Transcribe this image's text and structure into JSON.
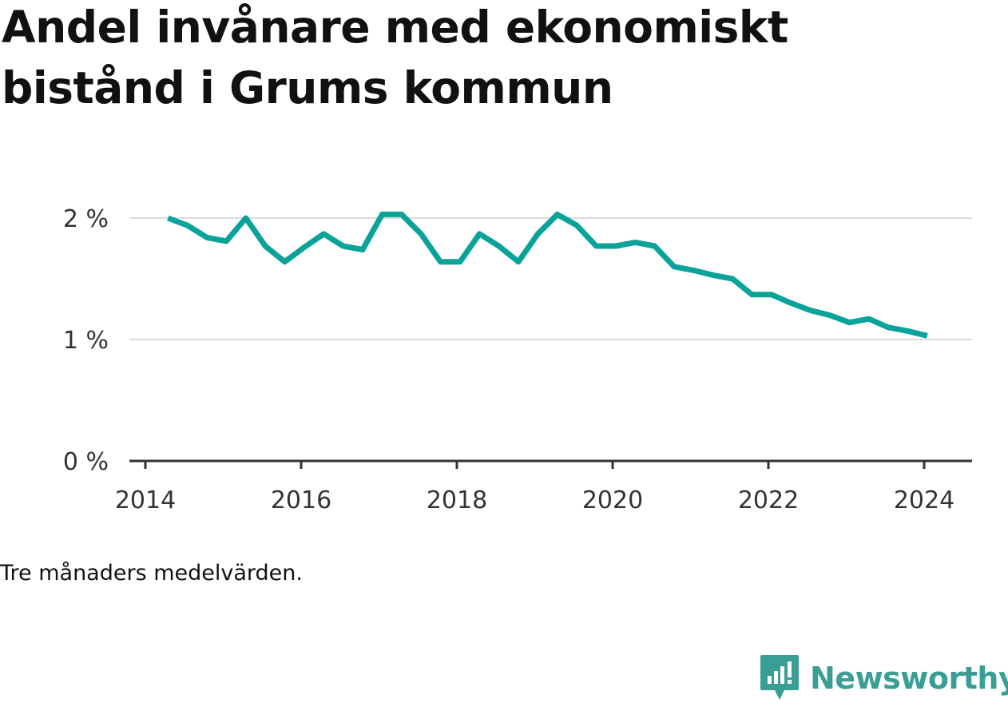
{
  "title": "Andel invånare med ekonomiskt bistånd i Grums kommun",
  "caption": "Tre månaders medelvärden.",
  "brand": {
    "name": "Newsworthy",
    "icon": "newsworthy-logo-icon",
    "color": "#3a9e95"
  },
  "chart_data": {
    "type": "line",
    "color": "#0aa39a",
    "grid": true,
    "y_ticks": [
      {
        "value": 0,
        "label": "0 %"
      },
      {
        "value": 1,
        "label": "1 %"
      },
      {
        "value": 2,
        "label": "2 %"
      }
    ],
    "x_ticks": [
      {
        "value": 2014,
        "label": "2014"
      },
      {
        "value": 2016,
        "label": "2016"
      },
      {
        "value": 2018,
        "label": "2018"
      },
      {
        "value": 2020,
        "label": "2020"
      },
      {
        "value": 2022,
        "label": "2022"
      },
      {
        "value": 2024,
        "label": "2024"
      }
    ],
    "xlim": [
      2014,
      2024.5
    ],
    "ylim": [
      0,
      2.1
    ],
    "series": [
      {
        "x": [
          2014.29,
          2014.54,
          2014.79,
          2015.04,
          2015.29,
          2015.54,
          2015.79,
          2016.04,
          2016.29,
          2016.54,
          2016.79,
          2017.04,
          2017.29,
          2017.54,
          2017.79,
          2018.04,
          2018.29,
          2018.54,
          2018.79,
          2019.04,
          2019.29,
          2019.54,
          2019.79,
          2020.04,
          2020.29,
          2020.54,
          2020.79,
          2021.04,
          2021.29,
          2021.54,
          2021.79,
          2022.04,
          2022.29,
          2022.54,
          2022.79,
          2023.04,
          2023.29,
          2023.54,
          2023.79,
          2024.04
        ],
        "values": [
          2.0,
          1.94,
          1.84,
          1.81,
          2.0,
          1.77,
          1.64,
          1.76,
          1.87,
          1.77,
          1.74,
          2.03,
          2.03,
          1.87,
          1.64,
          1.64,
          1.87,
          1.77,
          1.64,
          1.87,
          2.03,
          1.94,
          1.77,
          1.77,
          1.8,
          1.77,
          1.6,
          1.57,
          1.53,
          1.5,
          1.37,
          1.37,
          1.3,
          1.24,
          1.2,
          1.14,
          1.17,
          1.1,
          1.07,
          1.03
        ]
      }
    ]
  }
}
